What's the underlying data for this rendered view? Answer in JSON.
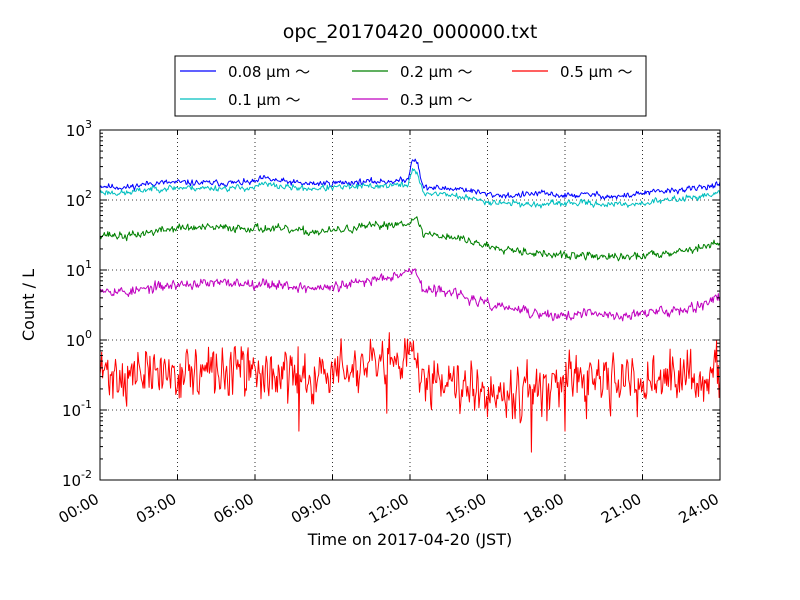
{
  "chart_data": {
    "type": "line",
    "title": "opc_20170420_000000.txt",
    "xlabel": "Time on 2017-04-20 (JST)",
    "ylabel": "Count / L",
    "x_unit": "hours",
    "xlim": [
      0,
      24
    ],
    "ylim": [
      0.01,
      1000
    ],
    "y_scale": "log",
    "grid": true,
    "legend_position": "top-center",
    "x_ticks": [
      "00:00",
      "03:00",
      "06:00",
      "09:00",
      "12:00",
      "15:00",
      "18:00",
      "21:00",
      "24:00"
    ],
    "y_ticks": [
      {
        "base": "10",
        "exp": "-2"
      },
      {
        "base": "10",
        "exp": "-1"
      },
      {
        "base": "10",
        "exp": "0"
      },
      {
        "base": "10",
        "exp": "1"
      },
      {
        "base": "10",
        "exp": "2"
      },
      {
        "base": "10",
        "exp": "3"
      }
    ],
    "series": [
      {
        "name": "0.08 μm ～",
        "color": "#0000ff",
        "noise": 0.03,
        "seed": 11,
        "x": [
          0,
          1,
          2,
          3,
          4,
          5,
          6,
          6.3,
          7,
          8,
          9,
          10,
          11,
          11.9,
          12.1,
          12.3,
          12.5,
          12.8,
          13.5,
          14,
          15,
          16,
          17,
          18,
          19,
          20,
          21,
          22,
          23,
          24
        ],
        "y": [
          160,
          150,
          175,
          178,
          175,
          175,
          180,
          205,
          185,
          170,
          175,
          180,
          185,
          190,
          400,
          350,
          150,
          150,
          145,
          145,
          120,
          115,
          125,
          115,
          120,
          110,
          125,
          135,
          145,
          170
        ]
      },
      {
        "name": "0.1 μm ～",
        "color": "#00bfbf",
        "noise": 0.03,
        "seed": 23,
        "x": [
          0,
          1,
          2,
          3,
          4,
          5,
          6,
          6.3,
          7,
          8,
          9,
          10,
          11,
          11.9,
          12.1,
          12.3,
          12.5,
          12.8,
          13.5,
          14,
          15,
          16,
          17,
          18,
          19,
          20,
          21,
          22,
          23,
          24
        ],
        "y": [
          130,
          125,
          145,
          150,
          148,
          148,
          150,
          170,
          155,
          145,
          150,
          155,
          160,
          165,
          270,
          230,
          125,
          125,
          120,
          110,
          95,
          90,
          85,
          90,
          90,
          85,
          90,
          100,
          110,
          125
        ]
      },
      {
        "name": "0.2 μm ～",
        "color": "#008000",
        "noise": 0.04,
        "seed": 37,
        "x": [
          0,
          1,
          2,
          3,
          4,
          5,
          6,
          7,
          8,
          9,
          10,
          11,
          11.9,
          12.1,
          12.3,
          12.5,
          13,
          14,
          15,
          16,
          17,
          18,
          19,
          20,
          21,
          22,
          23,
          24
        ],
        "y": [
          33,
          30,
          35,
          40,
          40,
          40,
          40,
          38,
          35,
          36,
          40,
          44,
          48,
          52,
          50,
          33,
          32,
          28,
          22,
          20,
          17,
          16,
          16,
          15,
          16,
          18,
          20,
          24
        ]
      },
      {
        "name": "0.3 μm ～",
        "color": "#bf00bf",
        "noise": 0.05,
        "seed": 53,
        "x": [
          0,
          1,
          2,
          3,
          4,
          5,
          6,
          7,
          8,
          9,
          10,
          11,
          11.9,
          12.1,
          12.3,
          12.5,
          13,
          13.5,
          14,
          15,
          16,
          17,
          18,
          19,
          20,
          21,
          22,
          23,
          24
        ],
        "y": [
          5.5,
          4.8,
          5.5,
          6.2,
          6.4,
          6.5,
          6.5,
          6.2,
          5.5,
          5.6,
          6.5,
          8,
          9.5,
          10,
          9,
          5,
          5,
          5.2,
          4.2,
          3.2,
          2.8,
          2.3,
          2.2,
          2.4,
          2.2,
          2.4,
          2.6,
          3,
          4
        ]
      },
      {
        "name": "0.5 μm ～",
        "color": "#ff0000",
        "noise": 0.25,
        "seed": 71,
        "x": [
          0,
          1,
          2,
          3,
          4,
          5,
          6,
          7,
          8,
          9,
          10,
          11,
          11.9,
          12.1,
          12.3,
          12.5,
          13,
          14,
          15,
          16,
          17,
          18,
          19,
          20,
          21,
          22,
          23,
          24
        ],
        "y": [
          0.35,
          0.3,
          0.33,
          0.35,
          0.33,
          0.35,
          0.35,
          0.3,
          0.3,
          0.35,
          0.38,
          0.4,
          0.45,
          0.6,
          0.5,
          0.3,
          0.3,
          0.28,
          0.2,
          0.2,
          0.2,
          0.22,
          0.24,
          0.25,
          0.25,
          0.27,
          0.3,
          0.35
        ],
        "spikes": [
          {
            "x": 7.7,
            "y": 0.05
          },
          {
            "x": 11.1,
            "y": 0.09
          },
          {
            "x": 15.0,
            "y": 0.08
          },
          {
            "x": 16.7,
            "y": 0.025
          },
          {
            "x": 17.3,
            "y": 0.07
          },
          {
            "x": 18.0,
            "y": 0.05
          },
          {
            "x": 20.8,
            "y": 0.08
          },
          {
            "x": 22.9,
            "y": 0.2
          },
          {
            "x": 12.0,
            "y": 0.95
          }
        ]
      }
    ]
  }
}
